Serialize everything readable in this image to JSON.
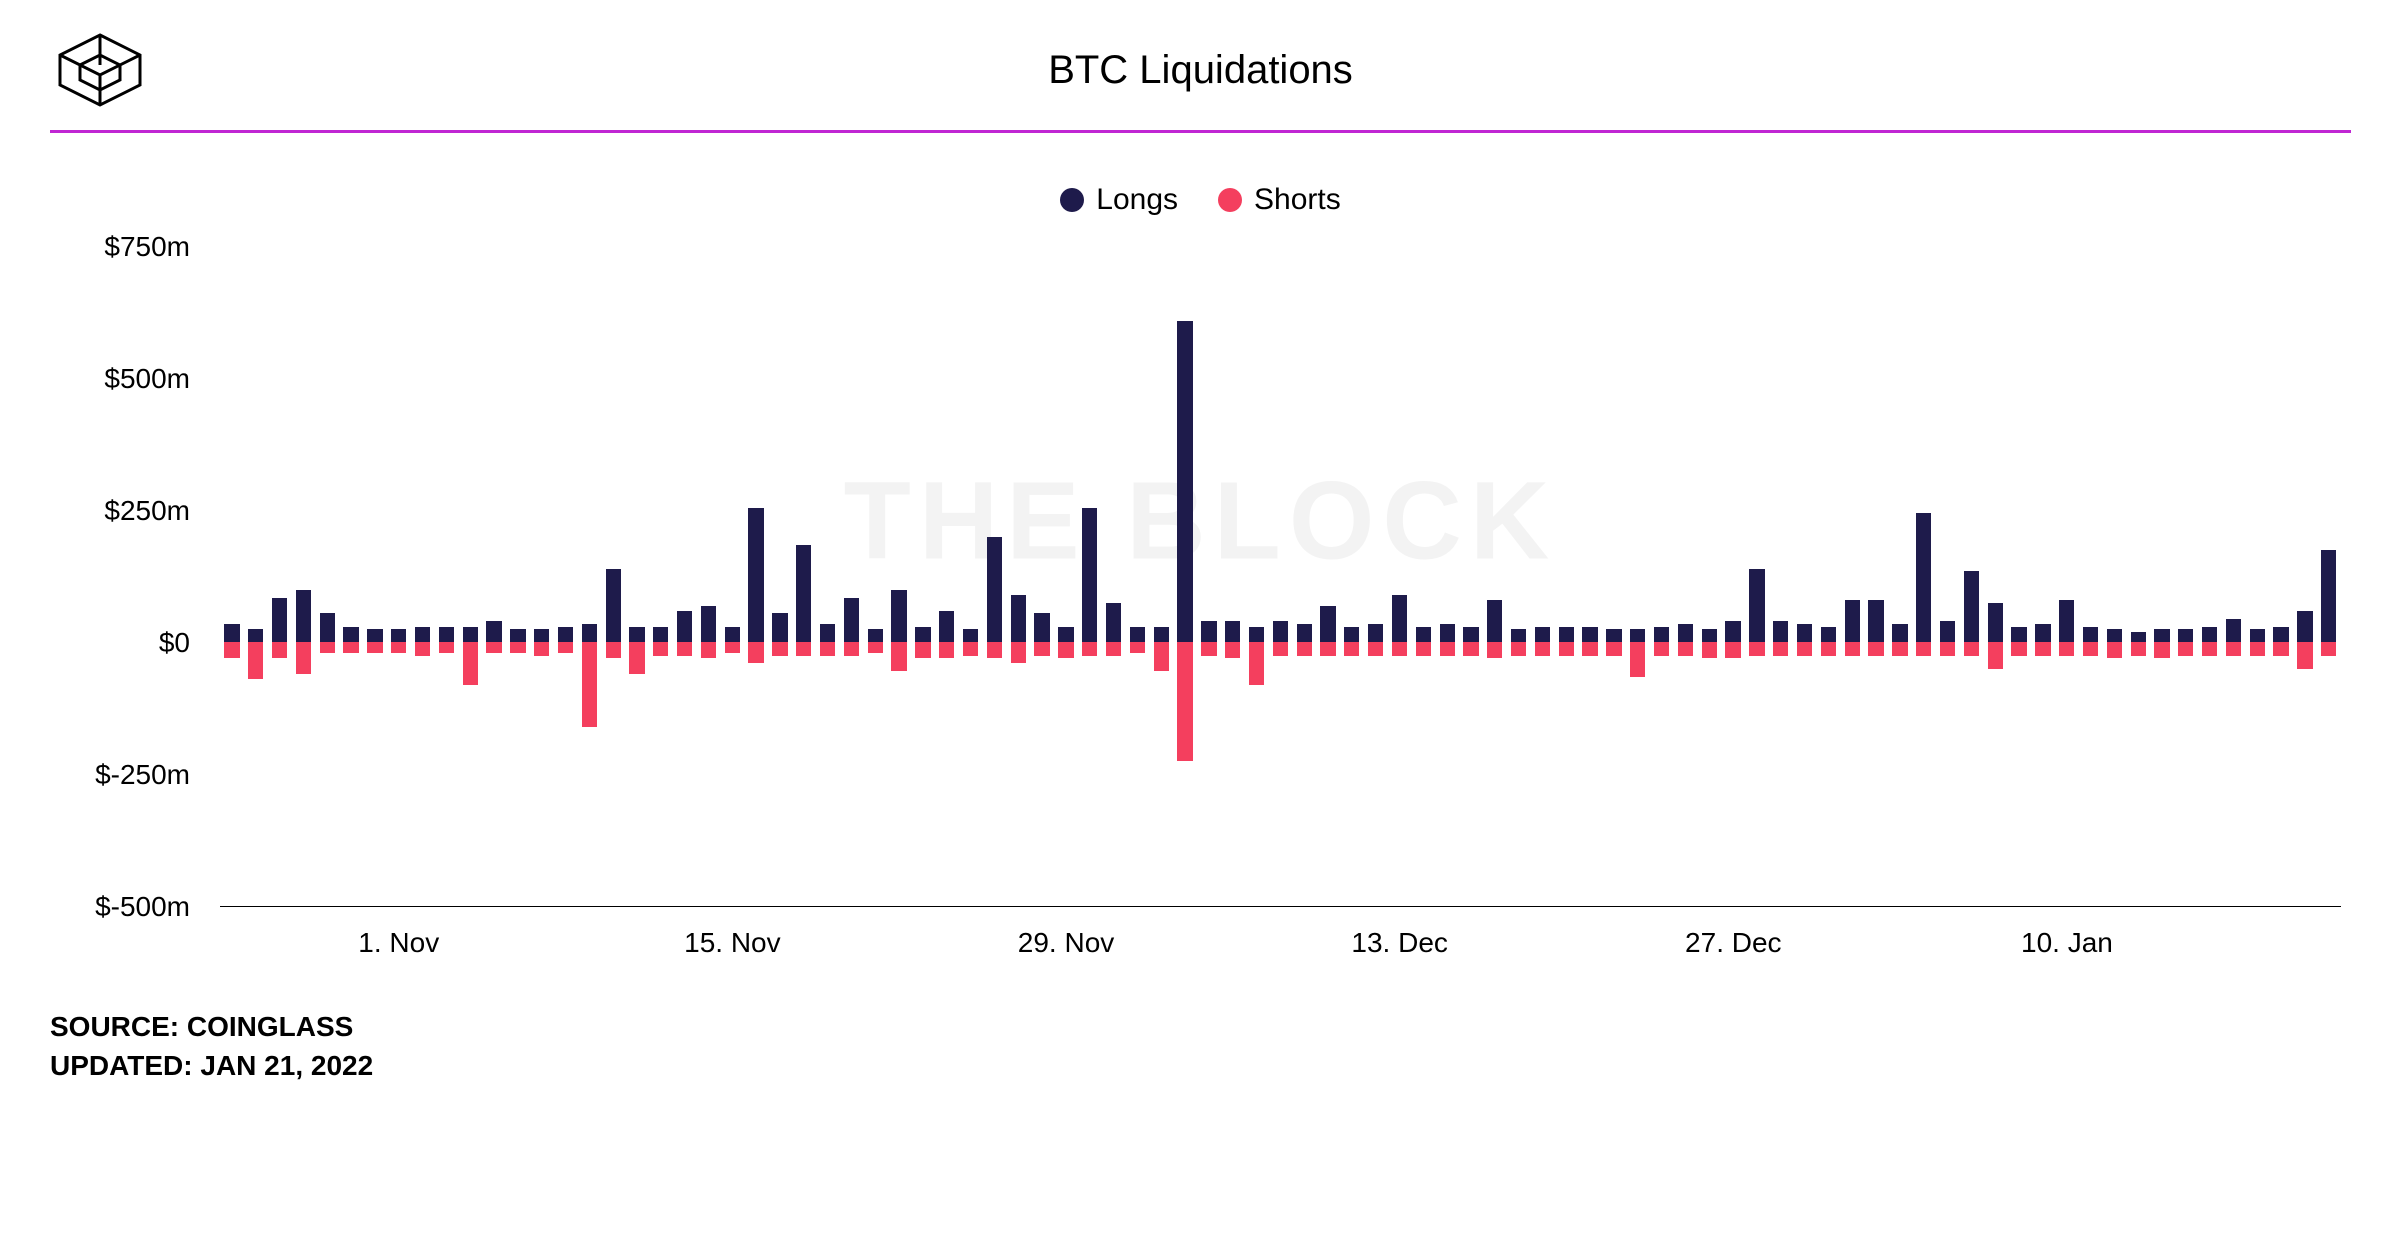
{
  "title": "BTC Liquidations",
  "watermark": "THE BLOCK",
  "source_label": "SOURCE:",
  "source_value": "COINGLASS",
  "updated_label": "UPDATED:",
  "updated_value": "JAN 21, 2022",
  "legend": {
    "longs": "Longs",
    "shorts": "Shorts"
  },
  "chart": {
    "type": "bar",
    "colors": {
      "longs": "#1e1b4b",
      "shorts": "#f43f5e",
      "divider": "#c026d3",
      "background": "#ffffff",
      "watermark": "#f3f3f3",
      "axis": "#000000"
    },
    "title_fontsize": 40,
    "label_fontsize": 28,
    "legend_fontsize": 30,
    "ylim": [
      -500,
      750
    ],
    "ytick_step": 250,
    "yticks": [
      {
        "value": 750,
        "label": "$750m"
      },
      {
        "value": 500,
        "label": "$500m"
      },
      {
        "value": 250,
        "label": "$250m"
      },
      {
        "value": 0,
        "label": "$0"
      },
      {
        "value": -250,
        "label": "$-250m"
      },
      {
        "value": -500,
        "label": "$-500m"
      }
    ],
    "xticks": [
      {
        "index": 7,
        "label": "1. Nov"
      },
      {
        "index": 21,
        "label": "15. Nov"
      },
      {
        "index": 35,
        "label": "29. Nov"
      },
      {
        "index": 49,
        "label": "13. Dec"
      },
      {
        "index": 63,
        "label": "27. Dec"
      },
      {
        "index": 77,
        "label": "10. Jan"
      }
    ],
    "data": [
      {
        "long": 35,
        "short": -30
      },
      {
        "long": 25,
        "short": -70
      },
      {
        "long": 85,
        "short": -30
      },
      {
        "long": 100,
        "short": -60
      },
      {
        "long": 55,
        "short": -20
      },
      {
        "long": 30,
        "short": -20
      },
      {
        "long": 25,
        "short": -20
      },
      {
        "long": 25,
        "short": -20
      },
      {
        "long": 30,
        "short": -25
      },
      {
        "long": 30,
        "short": -20
      },
      {
        "long": 30,
        "short": -80
      },
      {
        "long": 40,
        "short": -20
      },
      {
        "long": 25,
        "short": -20
      },
      {
        "long": 25,
        "short": -25
      },
      {
        "long": 30,
        "short": -20
      },
      {
        "long": 35,
        "short": -160
      },
      {
        "long": 140,
        "short": -30
      },
      {
        "long": 30,
        "short": -60
      },
      {
        "long": 30,
        "short": -25
      },
      {
        "long": 60,
        "short": -25
      },
      {
        "long": 70,
        "short": -30
      },
      {
        "long": 30,
        "short": -20
      },
      {
        "long": 255,
        "short": -40
      },
      {
        "long": 55,
        "short": -25
      },
      {
        "long": 185,
        "short": -25
      },
      {
        "long": 35,
        "short": -25
      },
      {
        "long": 85,
        "short": -25
      },
      {
        "long": 25,
        "short": -20
      },
      {
        "long": 100,
        "short": -55
      },
      {
        "long": 30,
        "short": -30
      },
      {
        "long": 60,
        "short": -30
      },
      {
        "long": 25,
        "short": -25
      },
      {
        "long": 200,
        "short": -30
      },
      {
        "long": 90,
        "short": -40
      },
      {
        "long": 55,
        "short": -25
      },
      {
        "long": 30,
        "short": -30
      },
      {
        "long": 255,
        "short": -25
      },
      {
        "long": 75,
        "short": -25
      },
      {
        "long": 30,
        "short": -20
      },
      {
        "long": 30,
        "short": -55
      },
      {
        "long": 610,
        "short": -225
      },
      {
        "long": 40,
        "short": -25
      },
      {
        "long": 40,
        "short": -30
      },
      {
        "long": 30,
        "short": -80
      },
      {
        "long": 40,
        "short": -25
      },
      {
        "long": 35,
        "short": -25
      },
      {
        "long": 70,
        "short": -25
      },
      {
        "long": 30,
        "short": -25
      },
      {
        "long": 35,
        "short": -25
      },
      {
        "long": 90,
        "short": -25
      },
      {
        "long": 30,
        "short": -25
      },
      {
        "long": 35,
        "short": -25
      },
      {
        "long": 30,
        "short": -25
      },
      {
        "long": 80,
        "short": -30
      },
      {
        "long": 25,
        "short": -25
      },
      {
        "long": 30,
        "short": -25
      },
      {
        "long": 30,
        "short": -25
      },
      {
        "long": 30,
        "short": -25
      },
      {
        "long": 25,
        "short": -25
      },
      {
        "long": 25,
        "short": -65
      },
      {
        "long": 30,
        "short": -25
      },
      {
        "long": 35,
        "short": -25
      },
      {
        "long": 25,
        "short": -30
      },
      {
        "long": 40,
        "short": -30
      },
      {
        "long": 140,
        "short": -25
      },
      {
        "long": 40,
        "short": -25
      },
      {
        "long": 35,
        "short": -25
      },
      {
        "long": 30,
        "short": -25
      },
      {
        "long": 80,
        "short": -25
      },
      {
        "long": 80,
        "short": -25
      },
      {
        "long": 35,
        "short": -25
      },
      {
        "long": 245,
        "short": -25
      },
      {
        "long": 40,
        "short": -25
      },
      {
        "long": 135,
        "short": -25
      },
      {
        "long": 75,
        "short": -50
      },
      {
        "long": 30,
        "short": -25
      },
      {
        "long": 35,
        "short": -25
      },
      {
        "long": 80,
        "short": -25
      },
      {
        "long": 30,
        "short": -25
      },
      {
        "long": 25,
        "short": -30
      },
      {
        "long": 20,
        "short": -25
      },
      {
        "long": 25,
        "short": -30
      },
      {
        "long": 25,
        "short": -25
      },
      {
        "long": 30,
        "short": -25
      },
      {
        "long": 45,
        "short": -25
      },
      {
        "long": 25,
        "short": -25
      },
      {
        "long": 30,
        "short": -25
      },
      {
        "long": 60,
        "short": -50
      },
      {
        "long": 175,
        "short": -25
      }
    ]
  }
}
